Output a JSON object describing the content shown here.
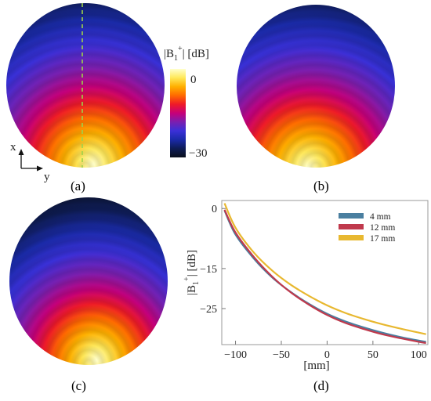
{
  "panels": {
    "a": "(a)",
    "b": "(b)",
    "c": "(c)",
    "d": "(d)"
  },
  "colorbar": {
    "title_main": "|B",
    "title_sub": "1",
    "title_sup": "+",
    "title_end": "| [dB]",
    "max_label": "0",
    "min_label": "−30",
    "colors": [
      "#ffffcc",
      "#ffe85a",
      "#ffb000",
      "#ff6a00",
      "#ef1a28",
      "#c6007a",
      "#7a1fb0",
      "#3a30d8",
      "#1a2aa8",
      "#0e1c55",
      "#0a0f1c"
    ]
  },
  "axes_icon": {
    "x_label": "x",
    "y_label": "y"
  },
  "chart_data": {
    "type": "line",
    "xlabel": "[mm]",
    "ylabel_main": "|B",
    "ylabel_sub": "1",
    "ylabel_sup": "+",
    "ylabel_end": "| [dB]",
    "xlim": [
      -115,
      110
    ],
    "ylim": [
      -34,
      2
    ],
    "xticks": [
      -100,
      -50,
      0,
      50,
      100
    ],
    "xtick_labels": [
      "−100",
      "−50",
      "0",
      "50",
      "100"
    ],
    "yticks": [
      0,
      -15,
      -25
    ],
    "ytick_labels": [
      "0",
      "−15",
      "−25"
    ],
    "legend_position": "top-right",
    "series": [
      {
        "name": "4  mm",
        "color": "#4a7fa0",
        "x": [
          -112,
          -100,
          -80,
          -60,
          -40,
          -20,
          0,
          20,
          40,
          60,
          80,
          100,
          108
        ],
        "y": [
          -0.5,
          -6.5,
          -12.5,
          -17.2,
          -20.8,
          -23.8,
          -26.3,
          -28.2,
          -29.7,
          -31.0,
          -32.1,
          -33.0,
          -33.3
        ]
      },
      {
        "name": "12 mm",
        "color": "#c0394c",
        "x": [
          -112,
          -100,
          -80,
          -60,
          -40,
          -20,
          0,
          20,
          40,
          60,
          80,
          100,
          108
        ],
        "y": [
          -0.3,
          -6.0,
          -12.1,
          -17.0,
          -20.9,
          -24.0,
          -26.6,
          -28.6,
          -30.1,
          -31.4,
          -32.4,
          -33.3,
          -33.6
        ]
      },
      {
        "name": "17 mm",
        "color": "#e8b830",
        "x": [
          -112,
          -100,
          -80,
          -60,
          -40,
          -20,
          0,
          20,
          40,
          60,
          80,
          100,
          108
        ],
        "y": [
          1.3,
          -4.8,
          -11.0,
          -15.5,
          -19.0,
          -21.8,
          -24.2,
          -26.1,
          -27.6,
          -28.9,
          -30.0,
          -31.0,
          -31.4
        ]
      }
    ]
  }
}
